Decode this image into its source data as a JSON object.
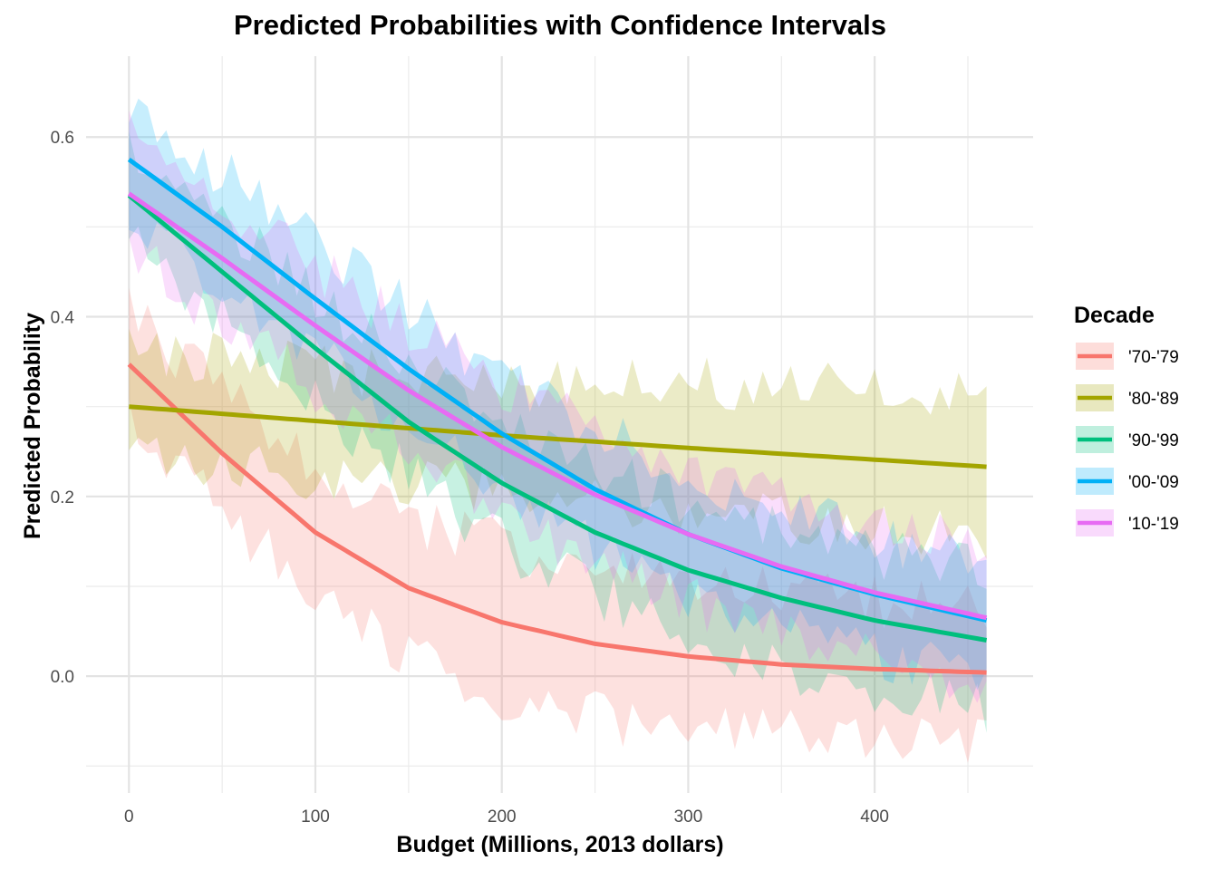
{
  "chart_data": {
    "type": "line",
    "title": "Predicted Probabilities with Confidence Intervals",
    "xlabel": "Budget (Millions, 2013 dollars)",
    "ylabel": "Predicted Probability",
    "xlim": [
      -23,
      485
    ],
    "ylim": [
      -0.13,
      0.69
    ],
    "x_ticks": [
      0,
      100,
      200,
      300,
      400
    ],
    "x_tick_labels": [
      "0",
      "100",
      "200",
      "300",
      "400"
    ],
    "y_ticks": [
      0.0,
      0.2,
      0.4,
      0.6
    ],
    "y_tick_labels": [
      "0.0",
      "0.2",
      "0.4",
      "0.6"
    ],
    "grid": true,
    "legend": {
      "title": "Decade",
      "placement": "right"
    },
    "x_range": [
      0,
      460
    ],
    "series": [
      {
        "name": "'70-'79",
        "color": "#F8766D",
        "line": [
          [
            0,
            0.347
          ],
          [
            50,
            0.248
          ],
          [
            100,
            0.16
          ],
          [
            150,
            0.098
          ],
          [
            200,
            0.06
          ],
          [
            250,
            0.036
          ],
          [
            300,
            0.022
          ],
          [
            350,
            0.013
          ],
          [
            400,
            0.008
          ],
          [
            460,
            0.004
          ]
        ],
        "band_halfwidth": [
          [
            0,
            0.06
          ],
          [
            100,
            0.07
          ],
          [
            200,
            0.085
          ],
          [
            300,
            0.08
          ],
          [
            400,
            0.075
          ],
          [
            460,
            0.075
          ]
        ]
      },
      {
        "name": "'80-'89",
        "color": "#A3A500",
        "line": [
          [
            0,
            0.3
          ],
          [
            100,
            0.284
          ],
          [
            200,
            0.268
          ],
          [
            300,
            0.254
          ],
          [
            400,
            0.241
          ],
          [
            460,
            0.233
          ]
        ],
        "band_halfwidth": [
          [
            0,
            0.06
          ],
          [
            200,
            0.06
          ],
          [
            300,
            0.075
          ],
          [
            460,
            0.075
          ]
        ]
      },
      {
        "name": "'90-'99",
        "color": "#00BF7D",
        "line": [
          [
            0,
            0.535
          ],
          [
            50,
            0.45
          ],
          [
            100,
            0.365
          ],
          [
            150,
            0.283
          ],
          [
            200,
            0.215
          ],
          [
            250,
            0.16
          ],
          [
            300,
            0.118
          ],
          [
            350,
            0.087
          ],
          [
            400,
            0.062
          ],
          [
            460,
            0.04
          ]
        ],
        "band_halfwidth": [
          [
            0,
            0.05
          ],
          [
            200,
            0.065
          ],
          [
            300,
            0.075
          ],
          [
            460,
            0.075
          ]
        ]
      },
      {
        "name": "'00-'09",
        "color": "#00B0F6",
        "line": [
          [
            0,
            0.575
          ],
          [
            50,
            0.5
          ],
          [
            100,
            0.42
          ],
          [
            150,
            0.342
          ],
          [
            200,
            0.27
          ],
          [
            250,
            0.208
          ],
          [
            300,
            0.158
          ],
          [
            350,
            0.12
          ],
          [
            400,
            0.091
          ],
          [
            460,
            0.062
          ]
        ],
        "band_halfwidth": [
          [
            0,
            0.06
          ],
          [
            200,
            0.065
          ],
          [
            300,
            0.065
          ],
          [
            460,
            0.065
          ]
        ]
      },
      {
        "name": "'10-'19",
        "color": "#E76BF3",
        "line": [
          [
            0,
            0.537
          ],
          [
            50,
            0.465
          ],
          [
            100,
            0.39
          ],
          [
            150,
            0.318
          ],
          [
            200,
            0.255
          ],
          [
            250,
            0.202
          ],
          [
            300,
            0.158
          ],
          [
            350,
            0.122
          ],
          [
            400,
            0.093
          ],
          [
            460,
            0.065
          ]
        ],
        "band_halfwidth": [
          [
            0,
            0.065
          ],
          [
            200,
            0.07
          ],
          [
            300,
            0.075
          ],
          [
            460,
            0.075
          ]
        ]
      }
    ]
  }
}
